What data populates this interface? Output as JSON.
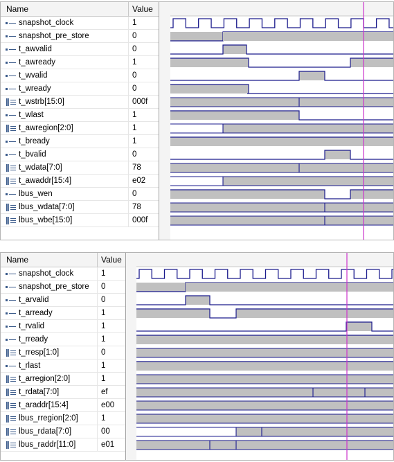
{
  "panels": [
    {
      "header": {
        "name": "Name",
        "value": "Value"
      },
      "signals": [
        {
          "name": "snapshot_clock",
          "value": "1",
          "type": "bit"
        },
        {
          "name": "snapshot_pre_store",
          "value": "0",
          "type": "bit"
        },
        {
          "name": "t_awvalid",
          "value": "0",
          "type": "bit"
        },
        {
          "name": "t_awready",
          "value": "1",
          "type": "bit"
        },
        {
          "name": "t_wvalid",
          "value": "0",
          "type": "bit"
        },
        {
          "name": "t_wready",
          "value": "0",
          "type": "bit"
        },
        {
          "name": "t_wstrb[15:0]",
          "value": "000f",
          "type": "bus"
        },
        {
          "name": "t_wlast",
          "value": "1",
          "type": "bit"
        },
        {
          "name": "t_awregion[2:0]",
          "value": "1",
          "type": "bus"
        },
        {
          "name": "t_bready",
          "value": "1",
          "type": "bit"
        },
        {
          "name": "t_bvalid",
          "value": "0",
          "type": "bit"
        },
        {
          "name": "t_wdata[7:0]",
          "value": "78",
          "type": "bus"
        },
        {
          "name": "t_awaddr[15:4]",
          "value": "e02",
          "type": "bus"
        },
        {
          "name": "lbus_wen",
          "value": "0",
          "type": "bit"
        },
        {
          "name": "lbus_wdata[7:0]",
          "value": "78",
          "type": "bus"
        },
        {
          "name": "lbus_wbe[15:0]",
          "value": "000f",
          "type": "bus"
        }
      ]
    },
    {
      "header": {
        "name": "Name",
        "value": "Value"
      },
      "signals": [
        {
          "name": "snapshot_clock",
          "value": "1",
          "type": "bit"
        },
        {
          "name": "snapshot_pre_store",
          "value": "0",
          "type": "bit"
        },
        {
          "name": "t_arvalid",
          "value": "0",
          "type": "bit"
        },
        {
          "name": "t_arready",
          "value": "1",
          "type": "bit"
        },
        {
          "name": "t_rvalid",
          "value": "1",
          "type": "bit"
        },
        {
          "name": "t_rready",
          "value": "1",
          "type": "bit"
        },
        {
          "name": "t_rresp[1:0]",
          "value": "0",
          "type": "bus"
        },
        {
          "name": "t_rlast",
          "value": "1",
          "type": "bit"
        },
        {
          "name": "t_arregion[2:0]",
          "value": "1",
          "type": "bus"
        },
        {
          "name": "t_rdata[7:0]",
          "value": "ef",
          "type": "bus"
        },
        {
          "name": "t_araddr[15:4]",
          "value": "e00",
          "type": "bus"
        },
        {
          "name": "lbus_rregion[2:0]",
          "value": "1",
          "type": "bus"
        },
        {
          "name": "lbus_rdata[7:0]",
          "value": "00",
          "type": "bus"
        },
        {
          "name": "lbus_raddr[11:0]",
          "value": "e01",
          "type": "bus"
        }
      ]
    }
  ],
  "colors": {
    "trace": "#1a1a8c",
    "fill": "#c0c0c0",
    "cursor": "#cc33cc",
    "icon": "#3a5a8a"
  }
}
